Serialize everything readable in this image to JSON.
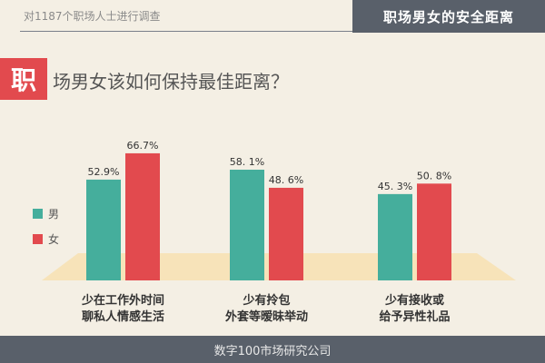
{
  "header": {
    "subtitle": "对1187个职场人士进行调查",
    "badge": "职场男女的安全距离"
  },
  "headline": {
    "mark": "职",
    "text": "场男女该如何保持最佳距离？"
  },
  "footer": {
    "source": "数字100市场研究公司"
  },
  "colors": {
    "male": "#45ae9c",
    "female": "#e24a4e",
    "floor": "#f7e3b9",
    "dark": "#59606a",
    "background": "#f4efe4"
  },
  "chart_data": {
    "type": "bar",
    "title": "",
    "xlabel": "",
    "ylabel": "",
    "ylim": [
      0,
      80
    ],
    "legend_position": "left",
    "grid": false,
    "categories": [
      [
        "少在工作外时间",
        "聊私人情感生活"
      ],
      [
        "少有拎包",
        "外套等暧昧举动"
      ],
      [
        "少有接收或",
        "给予异性礼品"
      ]
    ],
    "series": [
      {
        "name": "男",
        "values": [
          52.9,
          58.1,
          45.3
        ],
        "labels": [
          "52.9%",
          "58. 1%",
          "45. 3%"
        ]
      },
      {
        "name": "女",
        "values": [
          66.7,
          48.6,
          50.8
        ],
        "labels": [
          "66.7%",
          "48. 6%",
          "50. 8%"
        ]
      }
    ]
  }
}
